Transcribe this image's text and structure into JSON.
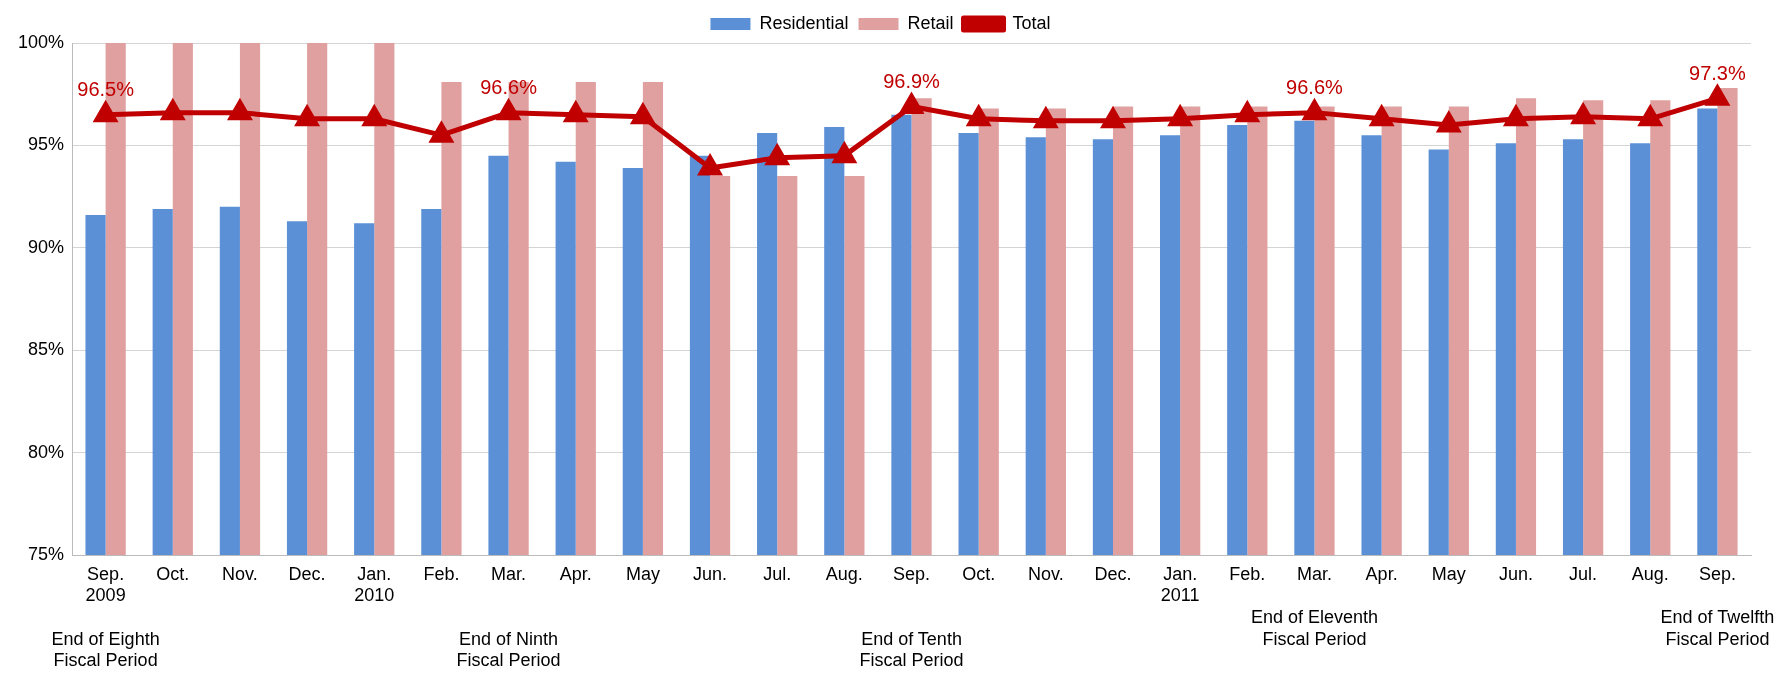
{
  "chart_data": {
    "type": "bar",
    "categories": [
      "Sep.\n2009\n\nEnd of Eighth\nFiscal Period",
      "Oct.",
      "Nov.",
      "Dec.",
      "Jan.\n2010",
      "Feb.",
      "Mar.\n\n\nEnd of Ninth\nFiscal Period",
      "Apr.",
      "May",
      "Jun.",
      "Jul.",
      "Aug.",
      "Sep.\n\n\nEnd of Tenth\nFiscal Period",
      "Oct.",
      "Nov.",
      "Dec.",
      "Jan.\n2011",
      "Feb.",
      "Mar.\n\nEnd of Eleventh\nFiscal Period",
      "Apr.",
      "May",
      "Jun.",
      "Jul.",
      "Aug.",
      "Sep.\n\nEnd of Twelfth\nFiscal Period"
    ],
    "series": [
      {
        "name": "Residential",
        "color": "#5b8fd6",
        "values": [
          91.6,
          91.9,
          92.0,
          91.3,
          91.2,
          91.9,
          94.5,
          94.2,
          93.9,
          94.5,
          95.6,
          95.9,
          96.5,
          95.6,
          95.4,
          95.3,
          95.5,
          96.0,
          96.2,
          95.5,
          94.8,
          95.1,
          95.3,
          95.1,
          96.8
        ]
      },
      {
        "name": "Retail",
        "color": "#e0a0a0",
        "values": [
          100,
          100,
          100,
          100,
          100,
          98.1,
          98.1,
          98.1,
          98.1,
          93.5,
          93.5,
          93.5,
          97.3,
          96.8,
          96.8,
          96.9,
          96.9,
          96.9,
          96.9,
          96.9,
          96.9,
          97.3,
          97.2,
          97.2,
          97.8
        ]
      },
      {
        "name": "Total",
        "type": "line",
        "color": "#c00000",
        "marker": "triangle",
        "values": [
          96.5,
          96.6,
          96.6,
          96.3,
          96.3,
          95.5,
          96.6,
          96.5,
          96.4,
          93.9,
          94.4,
          94.5,
          96.9,
          96.3,
          96.2,
          96.2,
          96.3,
          96.5,
          96.6,
          96.3,
          96.0,
          96.3,
          96.4,
          96.3,
          97.3
        ],
        "value_labels": [
          "96.5%",
          null,
          null,
          null,
          null,
          null,
          "96.6%",
          null,
          null,
          null,
          null,
          null,
          "96.9%",
          null,
          null,
          null,
          null,
          null,
          "96.6%",
          null,
          null,
          null,
          null,
          null,
          "97.3%"
        ]
      }
    ],
    "ylim": [
      75,
      100
    ],
    "yticks": [
      {
        "value": 75,
        "label": "75%"
      },
      {
        "value": 80,
        "label": "80%"
      },
      {
        "value": 85,
        "label": "85%"
      },
      {
        "value": 90,
        "label": "90%"
      },
      {
        "value": 95,
        "label": "95%"
      },
      {
        "value": 100,
        "label": "100%"
      }
    ],
    "grid": "y",
    "legend": "top"
  }
}
